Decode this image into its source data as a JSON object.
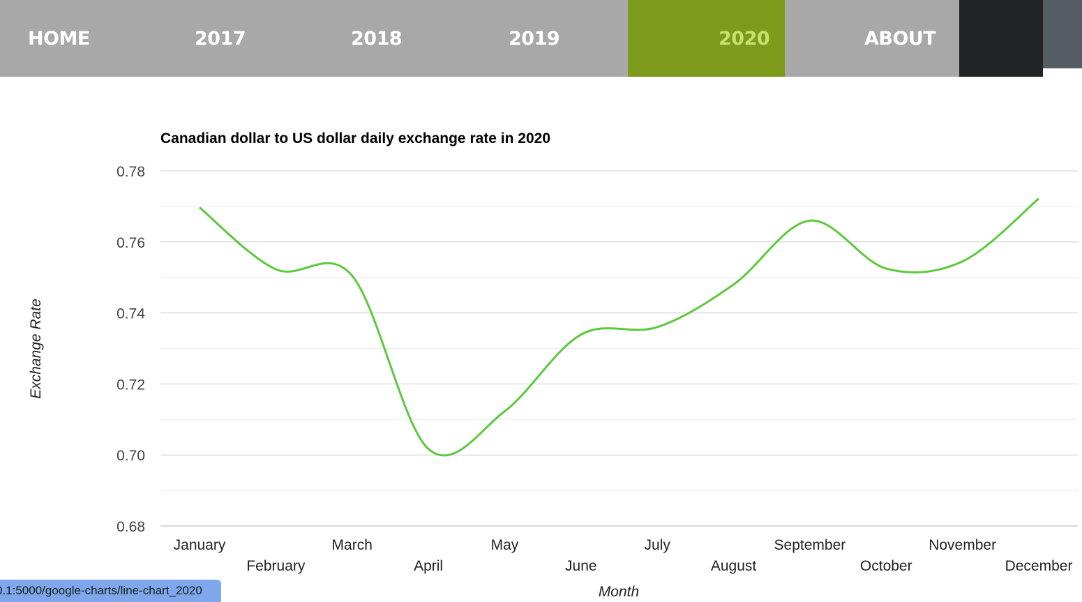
{
  "nav": {
    "items": [
      {
        "label": "HOME",
        "active": false
      },
      {
        "label": "2017",
        "active": false
      },
      {
        "label": "2018",
        "active": false
      },
      {
        "label": "2019",
        "active": false
      },
      {
        "label": "2020",
        "active": true
      },
      {
        "label": "ABOUT",
        "active": false
      }
    ]
  },
  "status_url": "0.1:5000/google-charts/line-chart_2020",
  "colors": {
    "nav_bg": "#a8a8a8",
    "nav_active_bg": "#7d9a1a",
    "nav_active_text": "#c5e36a",
    "line": "#5cc93c",
    "gridline": "#cccccc",
    "minor_gridline": "#ebebeb"
  },
  "chart_data": {
    "type": "line",
    "title": "Canadian dollar to US dollar daily exchange rate in 2020",
    "xlabel": "Month",
    "ylabel": "Exchange Rate",
    "categories": [
      "January",
      "February",
      "March",
      "April",
      "May",
      "June",
      "July",
      "August",
      "September",
      "October",
      "November",
      "December"
    ],
    "series": [
      {
        "values": [
          0.7697,
          0.7523,
          0.7505,
          0.7017,
          0.7123,
          0.7339,
          0.736,
          0.748,
          0.766,
          0.7525,
          0.7545,
          0.7722
        ]
      }
    ],
    "ylim": [
      0.68,
      0.78
    ],
    "yticks": [
      "0.78",
      "0.76",
      "0.74",
      "0.72",
      "0.70",
      "0.68"
    ],
    "grid": true,
    "legend": "none",
    "smooth": true
  }
}
